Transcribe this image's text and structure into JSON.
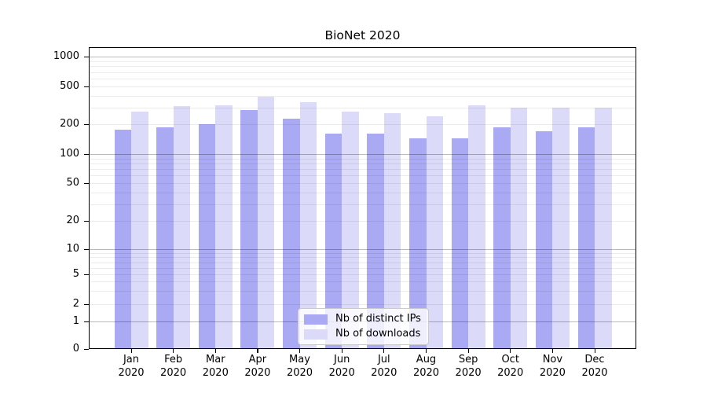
{
  "page": {
    "background": "#ffffff"
  },
  "chart_data": {
    "type": "bar",
    "title": "BioNet 2020",
    "categories": [
      "Jan",
      "Feb",
      "Mar",
      "Apr",
      "May",
      "Jun",
      "Jul",
      "Aug",
      "Sep",
      "Oct",
      "Nov",
      "Dec"
    ],
    "x_tick_second_line": "2020",
    "series": [
      {
        "name": "Nb of distinct IPs",
        "color": "#a9a9f4",
        "values": [
          175,
          185,
          200,
          280,
          230,
          160,
          160,
          145,
          145,
          185,
          170,
          185
        ]
      },
      {
        "name": "Nb of downloads",
        "color": "#dbdbf9",
        "values": [
          270,
          310,
          315,
          390,
          340,
          270,
          260,
          240,
          315,
          300,
          300,
          300
        ]
      }
    ],
    "xlabel": "",
    "ylabel": "",
    "yscale": "symlog",
    "yticks": [
      0,
      1,
      2,
      5,
      10,
      20,
      50,
      100,
      200,
      500,
      1000
    ],
    "ylim": [
      0,
      1400
    ],
    "grid": true,
    "grid_above_bars": true,
    "legend_position": "lower-center",
    "colors": {
      "bar_distinct_ips": "#a9a9f4",
      "bar_downloads": "#dbdbf9",
      "grid_minor": "#ececec",
      "grid_major": "#bababa",
      "axis": "#000000"
    }
  }
}
